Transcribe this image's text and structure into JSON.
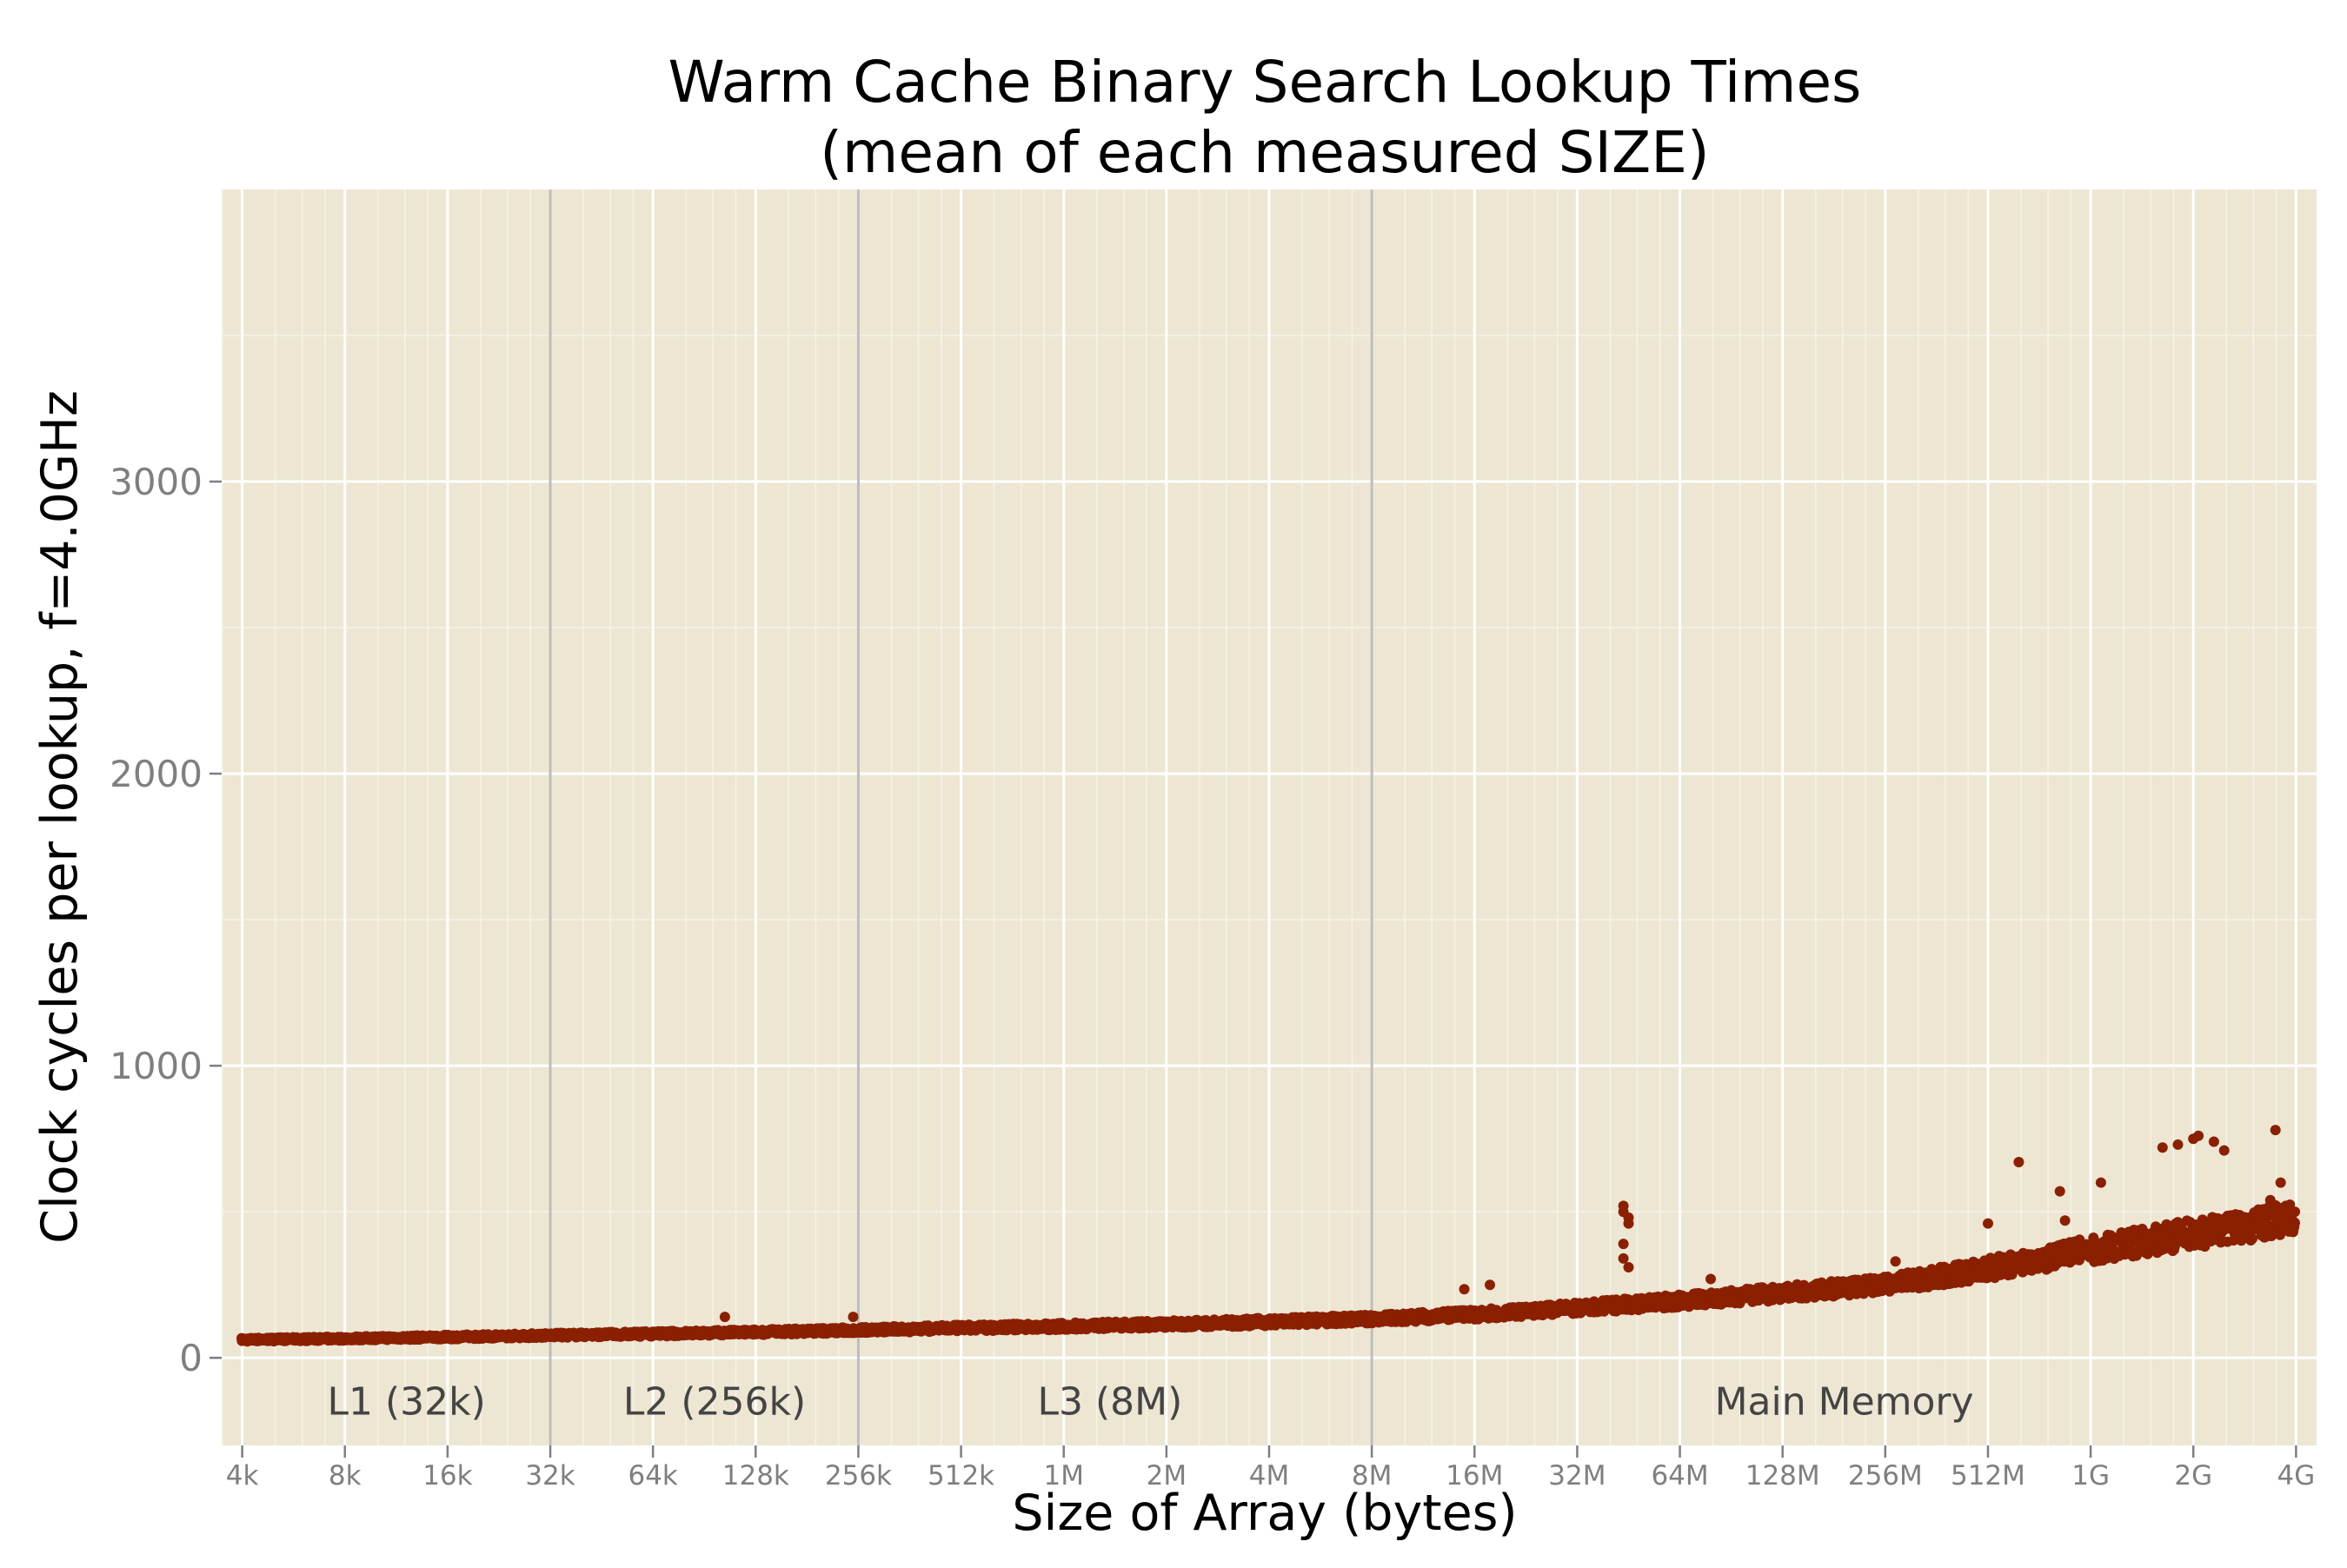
{
  "colors": {
    "panel_bg": "#ede6d3",
    "grid_major": "#ffffff",
    "cache_line": "#bdbdbd",
    "points": "#8b2000",
    "tick_text": "#7f7f7f",
    "region_text": "#444444",
    "title_text": "#000000"
  },
  "chart_data": {
    "type": "scatter",
    "title": "Warm Cache Binary Search Lookup Times",
    "subtitle": "(mean of each measured SIZE)",
    "xlabel": "Size of Array (bytes)",
    "ylabel": "Clock cycles per lookup, f=4.0GHz",
    "x_scale": "log2",
    "x_unit": "bytes",
    "xlim_log2": [
      11.8,
      32.2
    ],
    "ylim": [
      -300,
      4000
    ],
    "x_ticks": [
      {
        "log2": 12,
        "label": "4k"
      },
      {
        "log2": 13,
        "label": "8k"
      },
      {
        "log2": 14,
        "label": "16k"
      },
      {
        "log2": 15,
        "label": "32k"
      },
      {
        "log2": 16,
        "label": "64k"
      },
      {
        "log2": 17,
        "label": "128k"
      },
      {
        "log2": 18,
        "label": "256k"
      },
      {
        "log2": 19,
        "label": "512k"
      },
      {
        "log2": 20,
        "label": "1M"
      },
      {
        "log2": 21,
        "label": "2M"
      },
      {
        "log2": 22,
        "label": "4M"
      },
      {
        "log2": 23,
        "label": "8M"
      },
      {
        "log2": 24,
        "label": "16M"
      },
      {
        "log2": 25,
        "label": "32M"
      },
      {
        "log2": 26,
        "label": "64M"
      },
      {
        "log2": 27,
        "label": "128M"
      },
      {
        "log2": 28,
        "label": "256M"
      },
      {
        "log2": 29,
        "label": "512M"
      },
      {
        "log2": 30,
        "label": "1G"
      },
      {
        "log2": 31,
        "label": "2G"
      },
      {
        "log2": 32,
        "label": "4G"
      }
    ],
    "y_ticks": [
      0,
      1000,
      2000,
      3000
    ],
    "cache_boundaries_log2": [
      15,
      18,
      23
    ],
    "region_labels": [
      {
        "text": "L1 (32k)",
        "log2": 13.6
      },
      {
        "text": "L2 (256k)",
        "log2": 16.6
      },
      {
        "text": "L3 (8M)",
        "log2": 20.45
      },
      {
        "text": "Main Memory",
        "log2": 27.6
      }
    ],
    "region_label_y": -150,
    "trend_points": [
      [
        12,
        62
      ],
      [
        13,
        66
      ],
      [
        14,
        71
      ],
      [
        15,
        77
      ],
      [
        16,
        82
      ],
      [
        17,
        88
      ],
      [
        18,
        95
      ],
      [
        19,
        102
      ],
      [
        20,
        108
      ],
      [
        21,
        115
      ],
      [
        22,
        123
      ],
      [
        23,
        133
      ],
      [
        24,
        148
      ],
      [
        25,
        170
      ],
      [
        26,
        195
      ],
      [
        27,
        222
      ],
      [
        28,
        250
      ],
      [
        29,
        305
      ],
      [
        30,
        370
      ],
      [
        31,
        425
      ],
      [
        32,
        480
      ]
    ],
    "outliers": [
      [
        25.45,
        520
      ],
      [
        25.45,
        500
      ],
      [
        25.5,
        480
      ],
      [
        25.5,
        460
      ],
      [
        25.45,
        390
      ],
      [
        25.45,
        340
      ],
      [
        25.5,
        310
      ],
      [
        24.15,
        250
      ],
      [
        23.9,
        235
      ],
      [
        16.7,
        140
      ],
      [
        17.95,
        140
      ],
      [
        26.3,
        270
      ],
      [
        28.1,
        330
      ],
      [
        29.0,
        460
      ],
      [
        29.3,
        670
      ],
      [
        29.7,
        570
      ],
      [
        29.75,
        470
      ],
      [
        30.1,
        600
      ],
      [
        30.7,
        720
      ],
      [
        30.85,
        730
      ],
      [
        31.0,
        750
      ],
      [
        31.2,
        740
      ],
      [
        31.3,
        710
      ],
      [
        31.05,
        760
      ],
      [
        31.8,
        780
      ],
      [
        31.85,
        600
      ],
      [
        31.75,
        540
      ],
      [
        31.9,
        520
      ]
    ]
  }
}
